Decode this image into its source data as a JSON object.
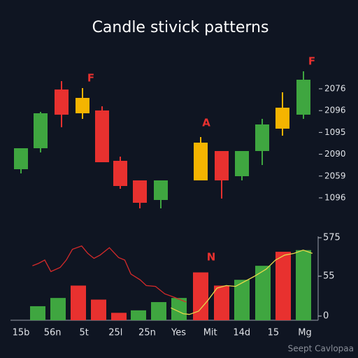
{
  "title": "Candle stivick patterns",
  "watermark": "Seept Cavlopaa",
  "chart_data": [
    {
      "type": "candlestick",
      "ylim": [
        0,
        100
      ],
      "y_labels": [
        "2076",
        "2096",
        "1095",
        "2090",
        "2059",
        "1096"
      ],
      "annotations": [
        "F",
        "A",
        "F"
      ],
      "open": [
        29,
        44,
        86,
        69,
        71,
        35,
        21,
        7,
        21,
        42,
        24,
        42,
        58,
        68
      ],
      "high": [
        44,
        70,
        92,
        87,
        74,
        38,
        21,
        21,
        52,
        42,
        42,
        65,
        84,
        99
      ],
      "low": [
        26,
        41,
        59,
        65,
        34,
        15,
        1,
        1,
        21,
        8,
        21,
        32,
        53,
        65
      ],
      "close": [
        44,
        69,
        68,
        80,
        34,
        17,
        5,
        21,
        48,
        21,
        42,
        61,
        73,
        93
      ],
      "colors": [
        "#3fa640",
        "#3fa640",
        "#e8312f",
        "#f5b400",
        "#e8312f",
        "#e8312f",
        "#e8312f",
        "#3fa640",
        "#f5b400",
        "#e8312f",
        "#3fa640",
        "#3fa640",
        "#f5b400",
        "#3fa640"
      ]
    },
    {
      "type": "bar",
      "ylim": [
        0,
        100
      ],
      "xlim": [
        0,
        100
      ],
      "y_labels": [
        "575",
        "55",
        "0"
      ],
      "x_labels": [
        "15b",
        "56n",
        "5t",
        "25l",
        "25n",
        "Yes",
        "Mit",
        "14d",
        "15",
        "Mg"
      ],
      "annotations": [
        "N"
      ],
      "values": [
        17,
        27,
        42,
        25,
        9,
        12,
        22,
        27,
        58,
        42,
        49,
        66,
        83,
        85
      ],
      "colors": [
        "#3fa640",
        "#3fa640",
        "#e8312f",
        "#e8312f",
        "#e8312f",
        "#3fa640",
        "#3fa640",
        "#3fa640",
        "#e8312f",
        "#e8312f",
        "#3fa640",
        "#3fa640",
        "#e8312f",
        "#3fa640"
      ],
      "series": [
        {
          "color": "#d42a2a",
          "x": [
            6,
            8,
            10,
            12,
            15,
            17,
            19,
            22,
            24,
            26,
            28,
            31,
            34,
            36,
            38,
            41,
            43,
            46,
            49,
            52,
            56
          ],
          "values": [
            66,
            69,
            73,
            59,
            64,
            73,
            86,
            90,
            81,
            75,
            79,
            88,
            76,
            73,
            56,
            49,
            42,
            41,
            32,
            28,
            22
          ]
        },
        {
          "color": "#e6d84a",
          "x": [
            51,
            55,
            57,
            60,
            63,
            66,
            69,
            72,
            75,
            78,
            82,
            85,
            88,
            91,
            94,
            97
          ],
          "values": [
            15,
            8,
            7,
            11,
            24,
            39,
            42,
            41,
            47,
            53,
            62,
            73,
            79,
            81,
            85,
            81
          ]
        }
      ]
    }
  ]
}
